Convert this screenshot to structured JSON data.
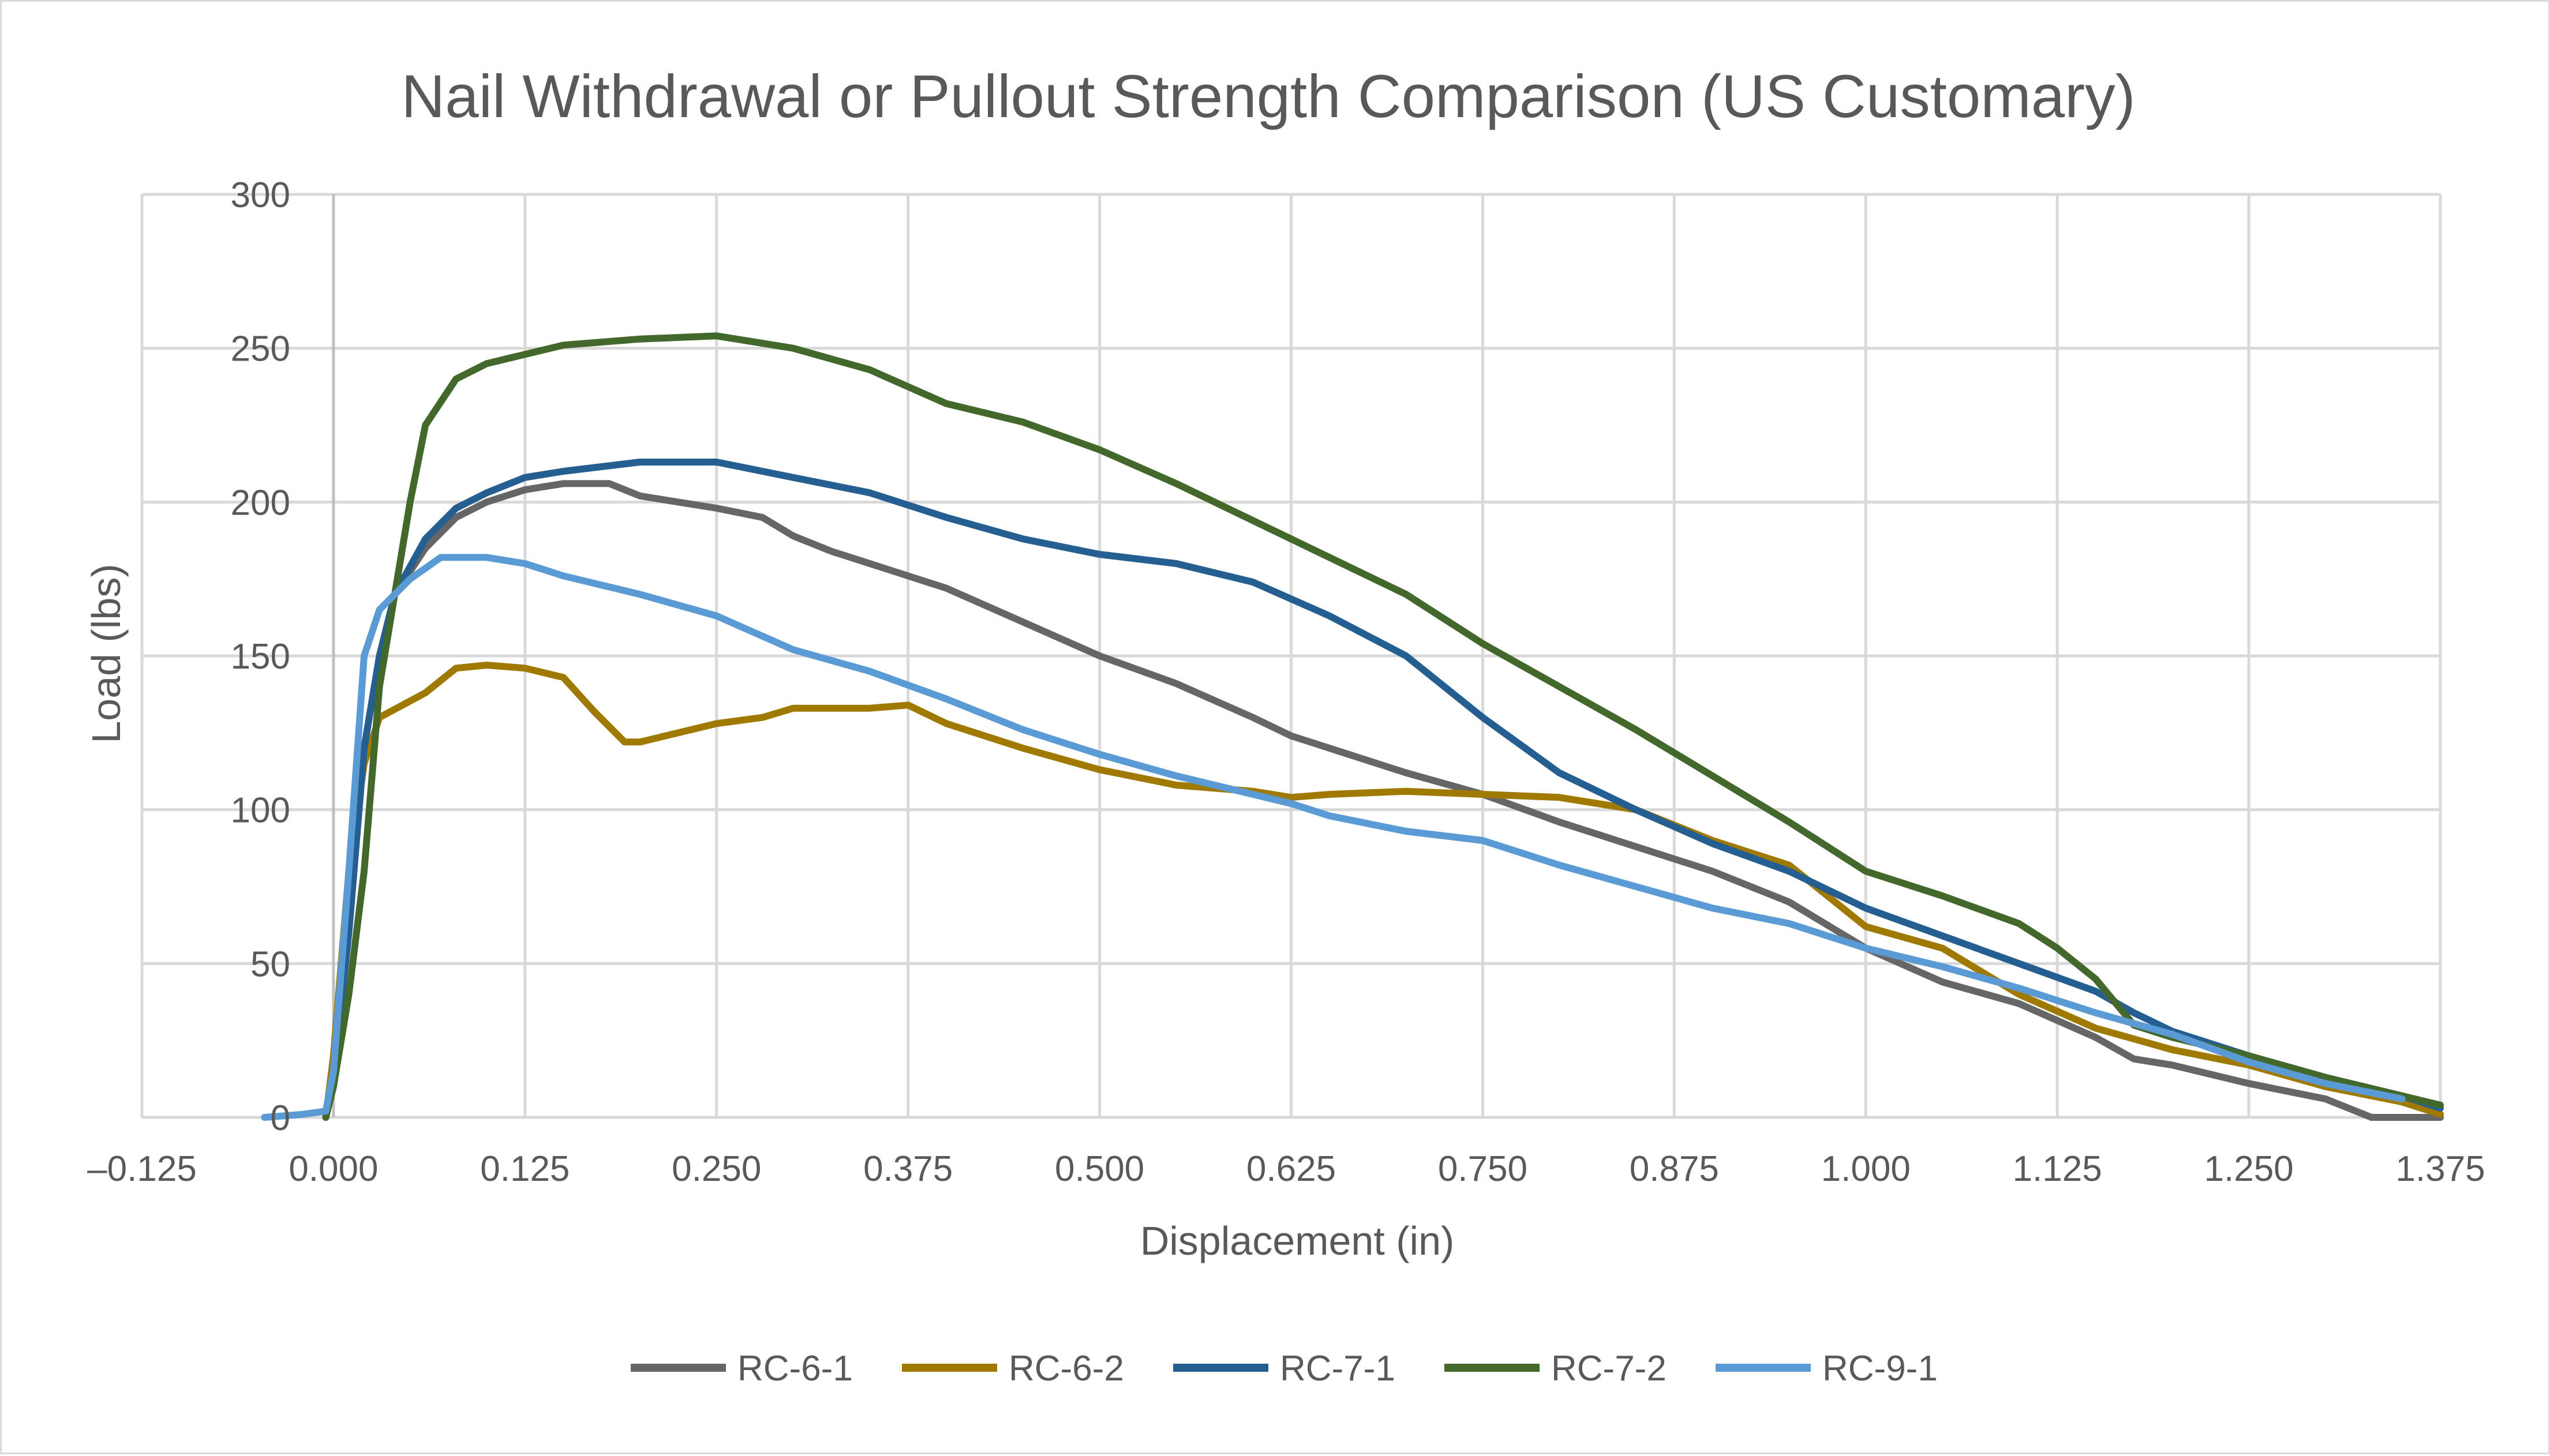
{
  "chart_data": {
    "type": "line",
    "title": "Nail Withdrawal or Pullout Strength Comparison (US Customary)",
    "xlabel": "Displacement (in)",
    "ylabel": "Load (lbs)",
    "xlim": [
      -0.125,
      1.375
    ],
    "ylim": [
      0,
      300
    ],
    "x_ticks": [
      -0.125,
      0.0,
      0.125,
      0.25,
      0.375,
      0.5,
      0.625,
      0.75,
      0.875,
      1.0,
      1.125,
      1.25,
      1.375
    ],
    "x_tick_labels": [
      "–0.125",
      "0.000",
      "0.125",
      "0.250",
      "0.375",
      "0.500",
      "0.625",
      "0.750",
      "0.875",
      "1.000",
      "1.125",
      "1.250",
      "1.375"
    ],
    "y_ticks": [
      0,
      50,
      100,
      150,
      200,
      250,
      300
    ],
    "y_tick_labels": [
      "0",
      "50",
      "100",
      "150",
      "200",
      "250",
      "300"
    ],
    "grid": true,
    "legend_position": "bottom",
    "series": [
      {
        "name": "RC-6-1",
        "color": "#666666",
        "points": [
          [
            -0.005,
            0
          ],
          [
            0.0,
            15
          ],
          [
            0.01,
            60
          ],
          [
            0.02,
            120
          ],
          [
            0.03,
            150
          ],
          [
            0.04,
            170
          ],
          [
            0.06,
            185
          ],
          [
            0.08,
            195
          ],
          [
            0.1,
            200
          ],
          [
            0.125,
            204
          ],
          [
            0.15,
            206
          ],
          [
            0.18,
            206
          ],
          [
            0.2,
            202
          ],
          [
            0.25,
            198
          ],
          [
            0.28,
            195
          ],
          [
            0.3,
            189
          ],
          [
            0.325,
            184
          ],
          [
            0.35,
            180
          ],
          [
            0.4,
            172
          ],
          [
            0.45,
            161
          ],
          [
            0.5,
            150
          ],
          [
            0.55,
            141
          ],
          [
            0.6,
            130
          ],
          [
            0.625,
            124
          ],
          [
            0.65,
            120
          ],
          [
            0.7,
            112
          ],
          [
            0.75,
            105
          ],
          [
            0.8,
            96
          ],
          [
            0.85,
            88
          ],
          [
            0.9,
            80
          ],
          [
            0.95,
            70
          ],
          [
            1.0,
            55
          ],
          [
            1.05,
            44
          ],
          [
            1.1,
            37
          ],
          [
            1.15,
            26
          ],
          [
            1.175,
            19
          ],
          [
            1.2,
            17
          ],
          [
            1.25,
            11
          ],
          [
            1.3,
            6
          ],
          [
            1.33,
            0
          ],
          [
            1.375,
            0
          ]
        ]
      },
      {
        "name": "RC-6-2",
        "color": "#a07a00",
        "points": [
          [
            -0.005,
            0
          ],
          [
            0.0,
            20
          ],
          [
            0.01,
            80
          ],
          [
            0.02,
            115
          ],
          [
            0.03,
            130
          ],
          [
            0.06,
            138
          ],
          [
            0.08,
            146
          ],
          [
            0.1,
            147
          ],
          [
            0.125,
            146
          ],
          [
            0.15,
            143
          ],
          [
            0.17,
            132
          ],
          [
            0.19,
            122
          ],
          [
            0.2,
            122
          ],
          [
            0.25,
            128
          ],
          [
            0.28,
            130
          ],
          [
            0.3,
            133
          ],
          [
            0.35,
            133
          ],
          [
            0.375,
            134
          ],
          [
            0.4,
            128
          ],
          [
            0.45,
            120
          ],
          [
            0.5,
            113
          ],
          [
            0.55,
            108
          ],
          [
            0.6,
            106
          ],
          [
            0.625,
            104
          ],
          [
            0.65,
            105
          ],
          [
            0.7,
            106
          ],
          [
            0.75,
            105
          ],
          [
            0.8,
            104
          ],
          [
            0.85,
            100
          ],
          [
            0.9,
            90
          ],
          [
            0.95,
            82
          ],
          [
            1.0,
            62
          ],
          [
            1.05,
            55
          ],
          [
            1.1,
            40
          ],
          [
            1.15,
            29
          ],
          [
            1.2,
            22
          ],
          [
            1.25,
            17
          ],
          [
            1.3,
            10
          ],
          [
            1.35,
            5
          ],
          [
            1.375,
            1
          ]
        ]
      },
      {
        "name": "RC-7-1",
        "color": "#255e91",
        "points": [
          [
            -0.005,
            0
          ],
          [
            0.0,
            15
          ],
          [
            0.01,
            60
          ],
          [
            0.02,
            120
          ],
          [
            0.03,
            150
          ],
          [
            0.04,
            170
          ],
          [
            0.06,
            188
          ],
          [
            0.08,
            198
          ],
          [
            0.1,
            203
          ],
          [
            0.125,
            208
          ],
          [
            0.15,
            210
          ],
          [
            0.2,
            213
          ],
          [
            0.25,
            213
          ],
          [
            0.3,
            208
          ],
          [
            0.35,
            203
          ],
          [
            0.4,
            195
          ],
          [
            0.45,
            188
          ],
          [
            0.5,
            183
          ],
          [
            0.55,
            180
          ],
          [
            0.6,
            174
          ],
          [
            0.65,
            163
          ],
          [
            0.7,
            150
          ],
          [
            0.75,
            130
          ],
          [
            0.8,
            112
          ],
          [
            0.85,
            100
          ],
          [
            0.9,
            89
          ],
          [
            0.95,
            80
          ],
          [
            1.0,
            68
          ],
          [
            1.05,
            59
          ],
          [
            1.1,
            50
          ],
          [
            1.15,
            41
          ],
          [
            1.175,
            34
          ],
          [
            1.2,
            28
          ],
          [
            1.25,
            20
          ],
          [
            1.3,
            13
          ],
          [
            1.35,
            7
          ],
          [
            1.375,
            3
          ]
        ]
      },
      {
        "name": "RC-7-2",
        "color": "#43682b",
        "points": [
          [
            -0.005,
            0
          ],
          [
            0.0,
            10
          ],
          [
            0.01,
            40
          ],
          [
            0.02,
            80
          ],
          [
            0.03,
            140
          ],
          [
            0.04,
            170
          ],
          [
            0.05,
            200
          ],
          [
            0.06,
            225
          ],
          [
            0.08,
            240
          ],
          [
            0.1,
            245
          ],
          [
            0.125,
            248
          ],
          [
            0.15,
            251
          ],
          [
            0.2,
            253
          ],
          [
            0.25,
            254
          ],
          [
            0.3,
            250
          ],
          [
            0.35,
            243
          ],
          [
            0.4,
            232
          ],
          [
            0.45,
            226
          ],
          [
            0.5,
            217
          ],
          [
            0.55,
            206
          ],
          [
            0.6,
            194
          ],
          [
            0.65,
            182
          ],
          [
            0.7,
            170
          ],
          [
            0.75,
            154
          ],
          [
            0.8,
            140
          ],
          [
            0.85,
            126
          ],
          [
            0.9,
            111
          ],
          [
            0.95,
            96
          ],
          [
            1.0,
            80
          ],
          [
            1.05,
            72
          ],
          [
            1.1,
            63
          ],
          [
            1.125,
            55
          ],
          [
            1.15,
            45
          ],
          [
            1.175,
            30
          ],
          [
            1.2,
            26
          ],
          [
            1.25,
            20
          ],
          [
            1.3,
            13
          ],
          [
            1.35,
            7
          ],
          [
            1.375,
            4
          ]
        ]
      },
      {
        "name": "RC-9-1",
        "color": "#5b9bd5",
        "points": [
          [
            -0.045,
            0
          ],
          [
            -0.02,
            1
          ],
          [
            -0.005,
            2
          ],
          [
            0.0,
            15
          ],
          [
            0.01,
            80
          ],
          [
            0.02,
            150
          ],
          [
            0.03,
            165
          ],
          [
            0.05,
            175
          ],
          [
            0.07,
            182
          ],
          [
            0.1,
            182
          ],
          [
            0.125,
            180
          ],
          [
            0.15,
            176
          ],
          [
            0.2,
            170
          ],
          [
            0.25,
            163
          ],
          [
            0.3,
            152
          ],
          [
            0.35,
            145
          ],
          [
            0.4,
            136
          ],
          [
            0.45,
            126
          ],
          [
            0.5,
            118
          ],
          [
            0.55,
            111
          ],
          [
            0.6,
            105
          ],
          [
            0.625,
            102
          ],
          [
            0.65,
            98
          ],
          [
            0.7,
            93
          ],
          [
            0.75,
            90
          ],
          [
            0.8,
            82
          ],
          [
            0.85,
            75
          ],
          [
            0.9,
            68
          ],
          [
            0.95,
            63
          ],
          [
            1.0,
            55
          ],
          [
            1.05,
            49
          ],
          [
            1.1,
            42
          ],
          [
            1.15,
            34
          ],
          [
            1.2,
            27
          ],
          [
            1.25,
            18
          ],
          [
            1.3,
            11
          ],
          [
            1.35,
            6
          ]
        ]
      }
    ]
  }
}
